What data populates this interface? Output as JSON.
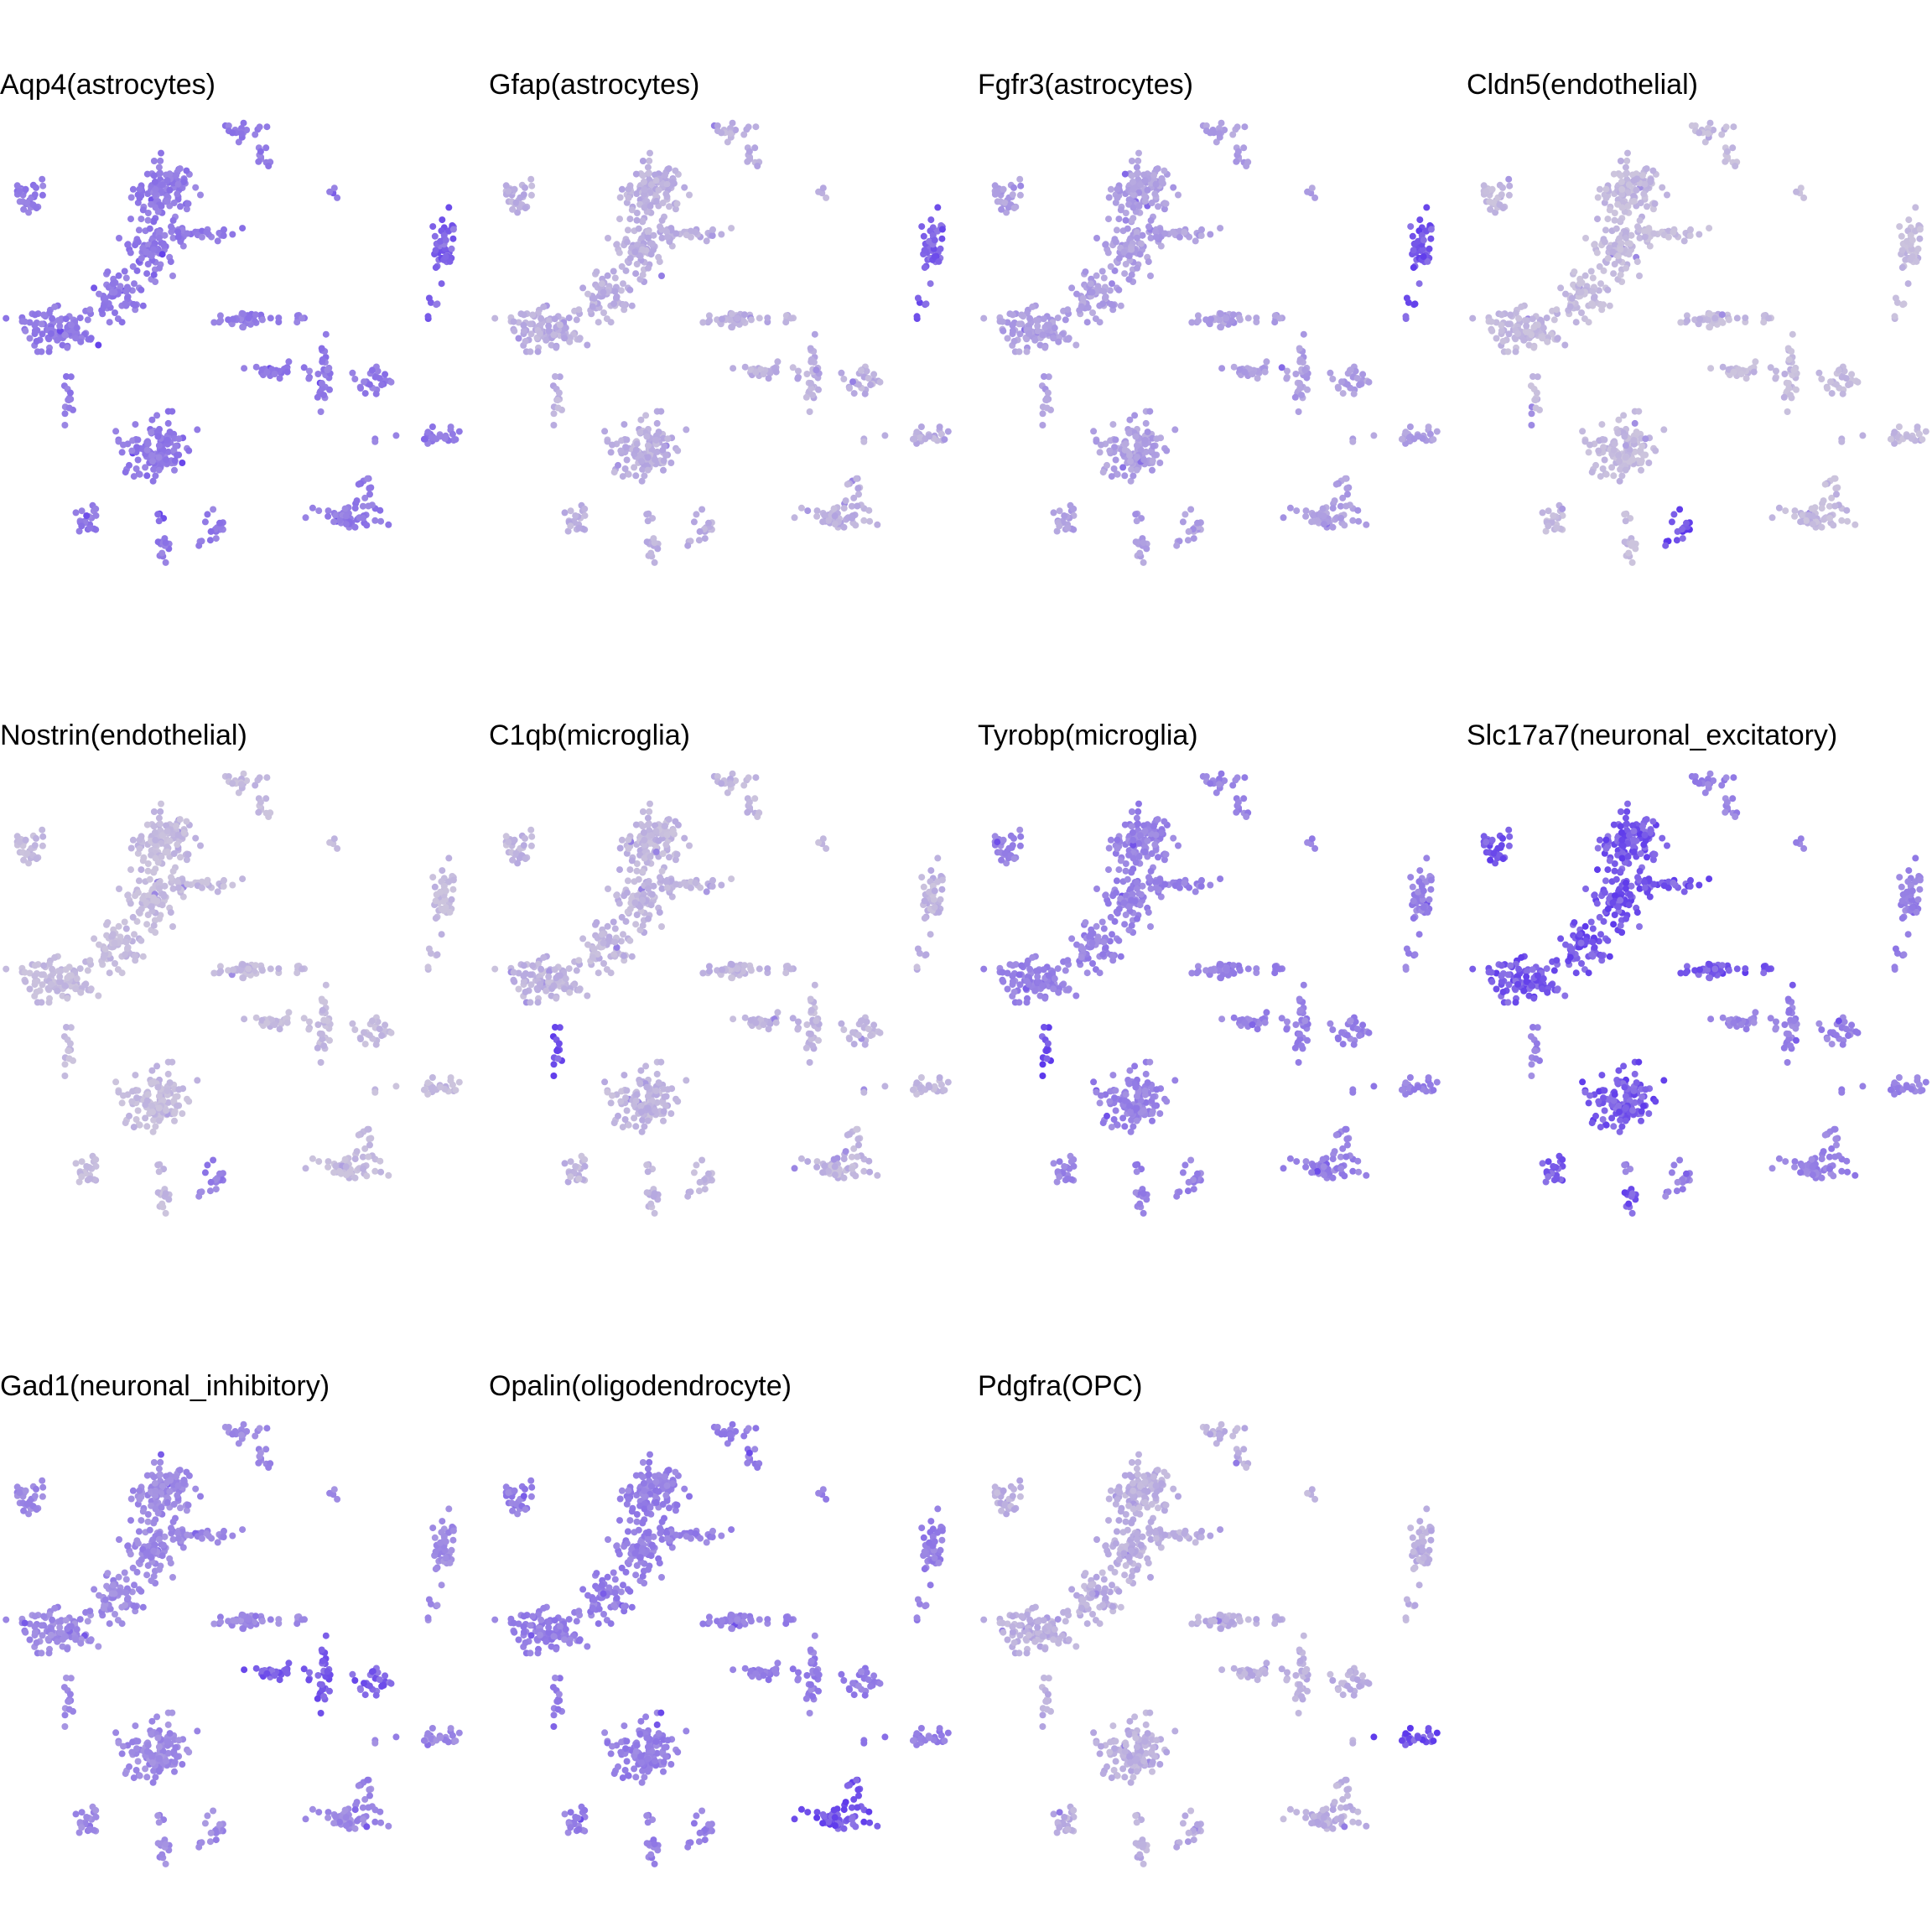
{
  "colors": {
    "low": "#ccc4dd",
    "high": "#4b22ee",
    "background": "#ffffff"
  },
  "chart_data": {
    "type": "scatter",
    "layout": "small multiples, 4 columns x 3 rows, shared UMAP embedding, color = expression level",
    "axes_visible": false,
    "grid": false,
    "legend": "none",
    "panels": [
      {
        "title": "Aqp4(astrocytes)",
        "base_level": 0.45,
        "hotspots": [
          {
            "cluster": "astro",
            "level": 0.75
          }
        ]
      },
      {
        "title": "Gfap(astrocytes)",
        "base_level": 0.12,
        "hotspots": [
          {
            "cluster": "astro",
            "level": 0.8
          }
        ]
      },
      {
        "title": "Fgfr3(astrocytes)",
        "base_level": 0.22,
        "hotspots": [
          {
            "cluster": "astro",
            "level": 0.85
          }
        ]
      },
      {
        "title": "Cldn5(endothelial)",
        "base_level": 0.05,
        "hotspots": [
          {
            "cluster": "endo",
            "level": 0.9
          }
        ]
      },
      {
        "title": "Nostrin(endothelial)",
        "base_level": 0.04,
        "hotspots": [
          {
            "cluster": "endo",
            "level": 0.55
          }
        ]
      },
      {
        "title": "C1qb(microglia)",
        "base_level": 0.08,
        "hotspots": [
          {
            "cluster": "micro",
            "level": 0.92
          }
        ]
      },
      {
        "title": "Tyrobp(microglia)",
        "base_level": 0.4,
        "hotspots": [
          {
            "cluster": "micro",
            "level": 0.88
          }
        ]
      },
      {
        "title": "Slc17a7(neuronal_excitatory)",
        "base_level": 0.4,
        "hotspots": [
          {
            "cluster": "excit",
            "level": 0.85
          }
        ]
      },
      {
        "title": "Gad1(neuronal_inhibitory)",
        "base_level": 0.35,
        "hotspots": [
          {
            "cluster": "inhib",
            "level": 0.8
          }
        ]
      },
      {
        "title": "Opalin(oligodendrocyte)",
        "base_level": 0.42,
        "hotspots": [
          {
            "cluster": "oligo",
            "level": 0.85
          }
        ]
      },
      {
        "title": "Pdgfra(OPC)",
        "base_level": 0.12,
        "hotspots": [
          {
            "cluster": "opc",
            "level": 0.88
          }
        ]
      }
    ]
  }
}
